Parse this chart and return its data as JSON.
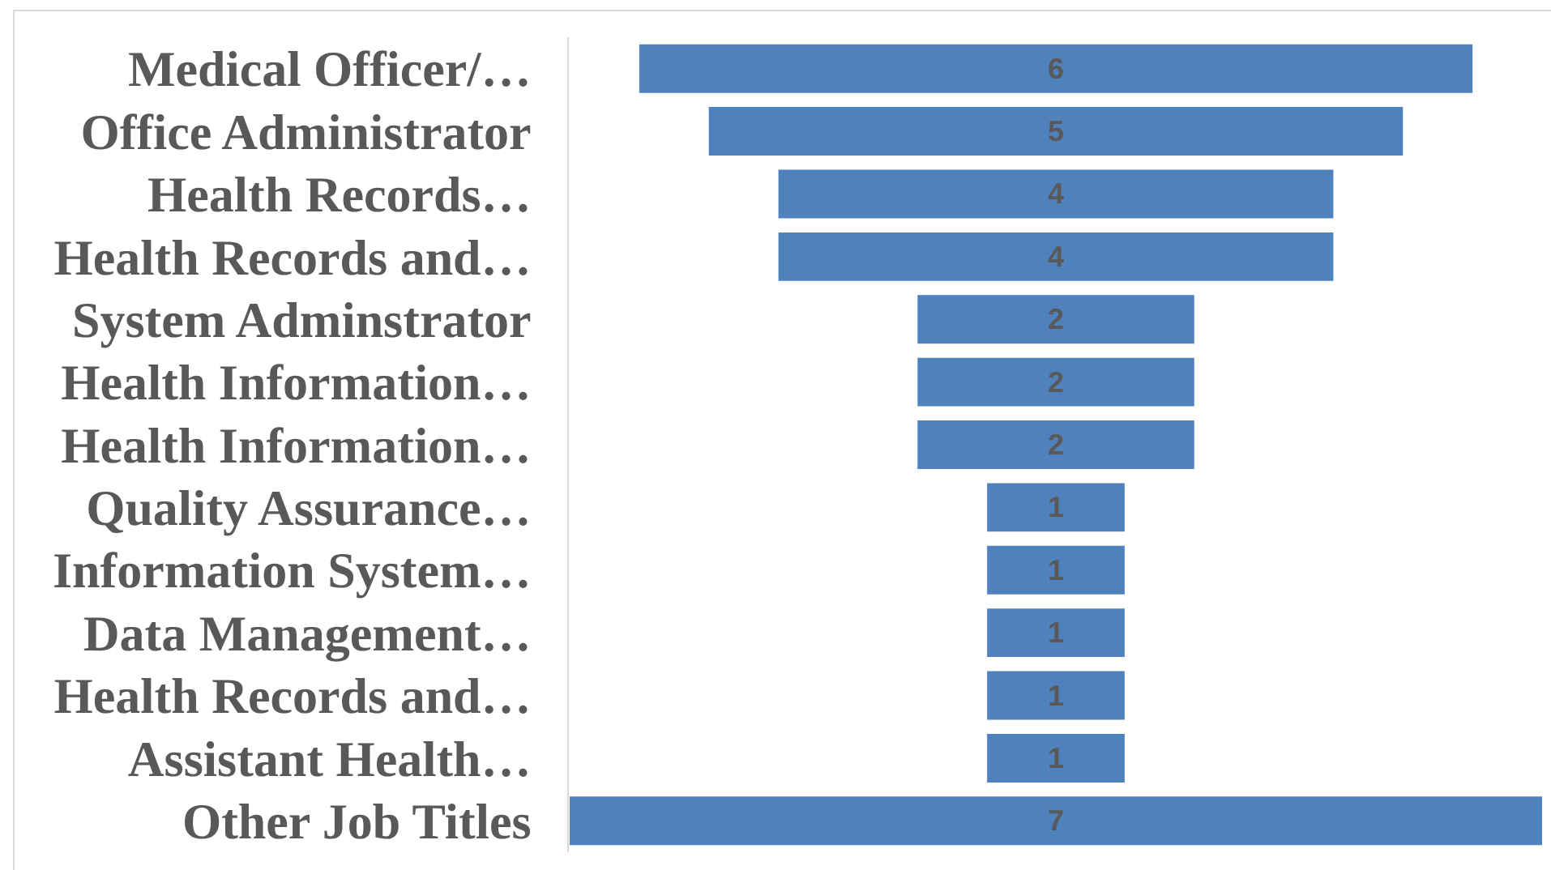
{
  "chart_data": {
    "type": "other",
    "categories": [
      "Medical Officer/…",
      "Office Administrator",
      "Health Records…",
      "Health Records and…",
      "System Adminstrator",
      "Health Information…",
      "Health Information…",
      "Quality Assurance…",
      "Information System…",
      "Data Management…",
      "Health Records and…",
      "Assistant Health…",
      "Other Job Titles"
    ],
    "values": [
      6,
      5,
      4,
      4,
      2,
      2,
      2,
      1,
      1,
      1,
      1,
      1,
      7
    ],
    "color": "#4f81bd",
    "data_labels": true
  }
}
